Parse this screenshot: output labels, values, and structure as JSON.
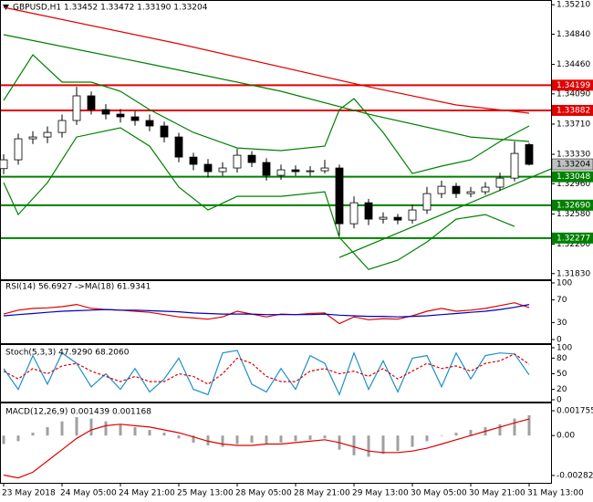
{
  "chart_data": [
    {
      "type": "candlestick",
      "title": "GBPUSD,H1  1.33452 1.33472 1.33190 1.33204",
      "up_color": "#ffffff",
      "down_color": "#000000",
      "open": [
        1.3315,
        1.33261,
        1.33525,
        1.33548,
        1.33605,
        1.33755,
        1.34065,
        1.33892,
        1.33835,
        1.33801,
        1.33755,
        1.33686,
        1.33548,
        1.33295,
        1.33204,
        1.33112,
        1.33158,
        1.33318,
        1.33227,
        1.33066,
        1.33135,
        1.33112,
        1.33123,
        1.33158,
        1.32457,
        1.32721,
        1.32515,
        1.32538,
        1.32503,
        1.3263,
        1.32836,
        1.32928,
        1.32836,
        1.32859,
        1.32917,
        1.33031,
        1.33452
      ],
      "high": [
        1.3333,
        1.3359,
        1.3362,
        1.3368,
        1.3383,
        1.34179,
        1.3412,
        1.3396,
        1.339,
        1.3387,
        1.3383,
        1.3374,
        1.336,
        1.3335,
        1.3327,
        1.3323,
        1.334,
        1.3337,
        1.3328,
        1.332,
        1.3319,
        1.3318,
        1.3326,
        1.332,
        1.328,
        1.3277,
        1.326,
        1.3258,
        1.327,
        1.3292,
        1.33,
        1.3297,
        1.3292,
        1.3298,
        1.331,
        1.33491,
        1.33472
      ],
      "low": [
        1.3308,
        1.332,
        1.3346,
        1.3347,
        1.3354,
        1.337,
        1.3383,
        1.3377,
        1.3373,
        1.3369,
        1.3362,
        1.3348,
        1.3323,
        1.3313,
        1.3304,
        1.3306,
        1.331,
        1.3317,
        1.33,
        1.3301,
        1.3306,
        1.3306,
        1.3309,
        1.32308,
        1.324,
        1.3244,
        1.3246,
        1.3245,
        1.3246,
        1.3258,
        1.3278,
        1.3278,
        1.3279,
        1.3282,
        1.3287,
        1.3299,
        1.3319
      ],
      "close": [
        1.33261,
        1.33525,
        1.33548,
        1.33605,
        1.33755,
        1.34065,
        1.33892,
        1.33835,
        1.33801,
        1.33755,
        1.33686,
        1.33548,
        1.33295,
        1.33204,
        1.33112,
        1.33158,
        1.33318,
        1.33227,
        1.33066,
        1.33135,
        1.33112,
        1.33123,
        1.33158,
        1.32457,
        1.32721,
        1.32515,
        1.32538,
        1.32503,
        1.3263,
        1.32836,
        1.32928,
        1.32836,
        1.32859,
        1.32917,
        1.33031,
        1.33341,
        1.33204
      ],
      "lines": [
        {
          "color": "#e00000",
          "x": [
            0,
            12,
            25,
            31,
            36
          ],
          "values": [
            1.35178,
            1.34719,
            1.34179,
            1.3395,
            1.33847
          ]
        },
        {
          "color": "#008000",
          "x": [
            0,
            10,
            19,
            25,
            32,
            36
          ],
          "values": [
            1.34834,
            1.34466,
            1.34122,
            1.33835,
            1.33548,
            1.33491
          ]
        },
        {
          "color": "#008000",
          "x": [
            0,
            2,
            4,
            6,
            8,
            10,
            13,
            16,
            19,
            22,
            23,
            24,
            26,
            28,
            30,
            32,
            34,
            36
          ],
          "values": [
            1.34007,
            1.34581,
            1.34237,
            1.34237,
            1.34122,
            1.33892,
            1.33605,
            1.3341,
            1.33376,
            1.33433,
            1.33892,
            1.3403,
            1.33605,
            1.33089,
            1.33181,
            1.33261,
            1.33491,
            1.33686
          ]
        },
        {
          "color": "#008000",
          "x": [
            0,
            1,
            3,
            5,
            8,
            10,
            12,
            14,
            16,
            19,
            22,
            23,
            25,
            27,
            29,
            31,
            33,
            35
          ],
          "values": [
            1.32974,
            1.32572,
            1.32974,
            1.33548,
            1.33663,
            1.33433,
            1.32917,
            1.3263,
            1.32802,
            1.32802,
            1.32859,
            1.32285,
            1.31883,
            1.31998,
            1.32228,
            1.32515,
            1.32572,
            1.32423
          ]
        },
        {
          "color": "#008000",
          "x": [
            23,
            37.5
          ],
          "values": [
            1.32033,
            1.33146
          ]
        }
      ],
      "levels": [
        {
          "value": 1.34199,
          "label": "1.34199",
          "color": "#e00000"
        },
        {
          "value": 1.33882,
          "label": "1.33882",
          "color": "#e00000"
        },
        {
          "value": 1.33048,
          "label": "1.33048",
          "color": "#008000"
        },
        {
          "value": 1.3269,
          "label": "1.32690",
          "color": "#008000"
        },
        {
          "value": 1.32277,
          "label": "1.32277",
          "color": "#008000"
        }
      ],
      "last_price": 1.33204,
      "ylim": [
        1.3177,
        1.3527
      ],
      "yticks": [
        {
          "value": 1.3521,
          "label": "1.35210"
        },
        {
          "value": 1.3484,
          "label": "1.34840"
        },
        {
          "value": 1.3446,
          "label": "1.34460"
        },
        {
          "value": 1.3409,
          "label": "1.34090"
        },
        {
          "value": 1.3371,
          "label": "1.33710"
        },
        {
          "value": 1.3333,
          "label": "1.33330"
        },
        {
          "value": 1.3296,
          "label": "1.32960"
        },
        {
          "value": 1.3258,
          "label": "1.32580"
        },
        {
          "value": 1.322,
          "label": "1.32200"
        },
        {
          "value": 1.3183,
          "label": "1.31830"
        }
      ]
    },
    {
      "type": "line",
      "title": "RSI(14) 56.6927  ->MA(18) 61.9341",
      "series": [
        {
          "color": "#e00000",
          "values": [
            45,
            52,
            55,
            56,
            58,
            62,
            55,
            53,
            52,
            50,
            48,
            44,
            40,
            38,
            36,
            40,
            50,
            45,
            40,
            45,
            44,
            46,
            47,
            28,
            40,
            35,
            37,
            36,
            42,
            50,
            55,
            50,
            52,
            55,
            60,
            65,
            56.6927
          ]
        },
        {
          "color": "#0000c0",
          "values": [
            42,
            44,
            46,
            48,
            50,
            51,
            52,
            53,
            52,
            52,
            51,
            50,
            49,
            47,
            46,
            45,
            45,
            45,
            44,
            44,
            44,
            44,
            45,
            43,
            42,
            41,
            41,
            40,
            41,
            42,
            44,
            46,
            48,
            50,
            53,
            57,
            61.9341
          ]
        }
      ],
      "ylim": [
        0,
        100
      ],
      "yticks": [
        100,
        70,
        30,
        0
      ]
    },
    {
      "type": "line",
      "title": "Stoch(5,3,3) 47.9290 68.2060",
      "series": [
        {
          "color": "#1e90c8",
          "values": [
            60,
            20,
            85,
            30,
            90,
            70,
            25,
            50,
            20,
            60,
            15,
            40,
            80,
            20,
            10,
            90,
            95,
            30,
            15,
            60,
            20,
            85,
            70,
            10,
            90,
            20,
            75,
            15,
            80,
            85,
            25,
            90,
            40,
            85,
            90,
            88,
            47.929
          ]
        },
        {
          "color": "#e00000",
          "dash": true,
          "values": [
            55,
            40,
            60,
            50,
            65,
            70,
            55,
            45,
            35,
            45,
            35,
            35,
            50,
            45,
            30,
            50,
            80,
            70,
            45,
            35,
            35,
            55,
            60,
            50,
            55,
            45,
            60,
            40,
            55,
            70,
            60,
            65,
            55,
            70,
            75,
            88,
            68.206
          ]
        }
      ],
      "ylim": [
        0,
        100
      ],
      "yticks": [
        100,
        80,
        50,
        20,
        0
      ]
    },
    {
      "type": "bar",
      "title": "MACD(12,26,9) 0.001439 0.001168",
      "categories": [
        "23 May 2018",
        null,
        null,
        null,
        "24 May 05:00",
        null,
        null,
        null,
        "24 May 21:00",
        null,
        null,
        null,
        "25 May 13:00",
        null,
        null,
        null,
        "28 May 05:00",
        null,
        null,
        null,
        "28 May 21:00",
        null,
        null,
        null,
        "29 May 13:00",
        null,
        null,
        null,
        "30 May 05:00",
        null,
        null,
        null,
        "30 May 21:00",
        null,
        null,
        null,
        "31 May 13:00"
      ],
      "color": "#a0a0a0",
      "values": [
        -0.0006,
        -0.0004,
        0.0002,
        0.0006,
        0.001,
        0.0013,
        0.0012,
        0.001,
        0.0008,
        0.0006,
        0.0004,
        0.0002,
        -0.0002,
        -0.0005,
        -0.0007,
        -0.0008,
        -0.0006,
        -0.0005,
        -0.0006,
        -0.0005,
        -0.0004,
        -0.0003,
        -0.0002,
        -0.001,
        -0.0014,
        -0.0015,
        -0.0013,
        -0.0011,
        -0.0008,
        -0.0004,
        0,
        0.0002,
        0.0004,
        0.0006,
        0.0008,
        0.0012,
        0.001439
      ],
      "series": [
        {
          "color": "#e00000",
          "values": [
            -0.0028,
            -0.003,
            -0.0026,
            -0.0018,
            -0.001,
            -0.0002,
            0.0004,
            0.0007,
            0.0008,
            0.0007,
            0.0006,
            0.0004,
            0.0002,
            -0.0001,
            -0.0004,
            -0.0006,
            -0.0007,
            -0.0007,
            -0.0006,
            -0.0006,
            -0.0005,
            -0.0004,
            -0.0003,
            -0.0005,
            -0.0008,
            -0.0011,
            -0.0012,
            -0.0012,
            -0.0011,
            -0.0009,
            -0.0006,
            -0.0003,
            0,
            0.0003,
            0.0006,
            0.0009,
            0.001168
          ]
        }
      ],
      "ylim": [
        -0.00322,
        0.00221
      ],
      "yticks": [
        0.001755,
        {
          "value": 0,
          "label": "0.00"
        },
        -0.002825
      ]
    }
  ]
}
